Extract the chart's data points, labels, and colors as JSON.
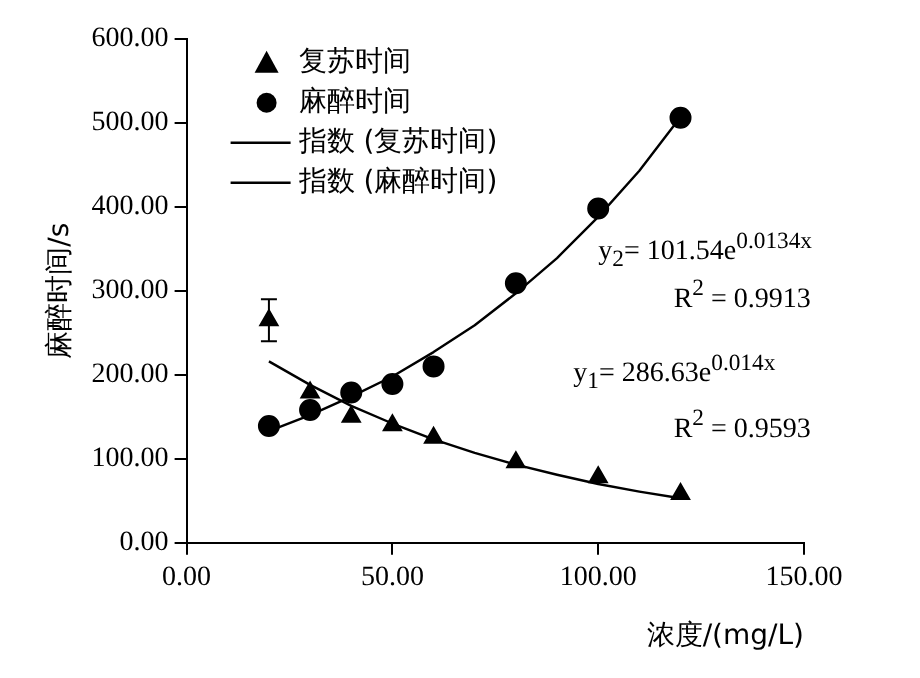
{
  "chart_data": {
    "type": "scatter",
    "xlabel": "浓度/(mg/L)",
    "ylabel": "麻醉时间/s",
    "xlim": [
      0,
      150
    ],
    "xticks": [
      {
        "value": 0,
        "label": "0.00"
      },
      {
        "value": 50,
        "label": "50.00"
      },
      {
        "value": 100,
        "label": "100.00"
      },
      {
        "value": 150,
        "label": "150.00"
      }
    ],
    "ylim": [
      0,
      600
    ],
    "yticks": [
      {
        "value": 0,
        "label": "0.00"
      },
      {
        "value": 100,
        "label": "100.00"
      },
      {
        "value": 200,
        "label": "200.00"
      },
      {
        "value": 300,
        "label": "300.00"
      },
      {
        "value": 400,
        "label": "400.00"
      },
      {
        "value": 500,
        "label": "500.00"
      },
      {
        "value": 600,
        "label": "600.00"
      }
    ],
    "grid": false,
    "legend": "top left",
    "series": [
      {
        "name": "复苏时间",
        "type": "scatter",
        "marker": "triangle",
        "color": "#000000",
        "x": [
          20,
          30,
          40,
          50,
          60,
          80,
          100,
          120
        ],
        "values": [
          265,
          179,
          150,
          140,
          125,
          96,
          78,
          58
        ],
        "errors": [
          25,
          null,
          null,
          null,
          null,
          null,
          null,
          null
        ]
      },
      {
        "name": "麻醉时间",
        "type": "scatter",
        "marker": "circle",
        "color": "#000000",
        "x": [
          20,
          30,
          40,
          50,
          60,
          80,
          100,
          120
        ],
        "values": [
          139,
          158,
          179,
          189,
          210,
          309,
          398,
          506
        ]
      },
      {
        "name": "指数 (复苏时间)",
        "type": "line",
        "marker": "none",
        "color": "#000000",
        "x": [
          20,
          30,
          40,
          50,
          60,
          70,
          80,
          90,
          100,
          110,
          120
        ],
        "values": [
          216,
          188,
          163,
          142,
          123,
          107,
          93,
          81,
          70,
          61,
          53
        ]
      },
      {
        "name": "指数 (麻醉时间)",
        "type": "line",
        "marker": "none",
        "color": "#000000",
        "x": [
          20,
          30,
          40,
          50,
          60,
          70,
          80,
          90,
          100,
          110,
          120
        ],
        "values": [
          133,
          152,
          174,
          198,
          227,
          259,
          297,
          339,
          388,
          443,
          507
        ]
      }
    ],
    "annotations": [
      "y$_{2}$= 101.54e$^{0.0134x}$",
      "R$^{2}$ = 0.9913",
      "y$_{1}$= 286.63e$^{0.014x}$",
      "R$^{2}$ = 0.9593"
    ]
  }
}
